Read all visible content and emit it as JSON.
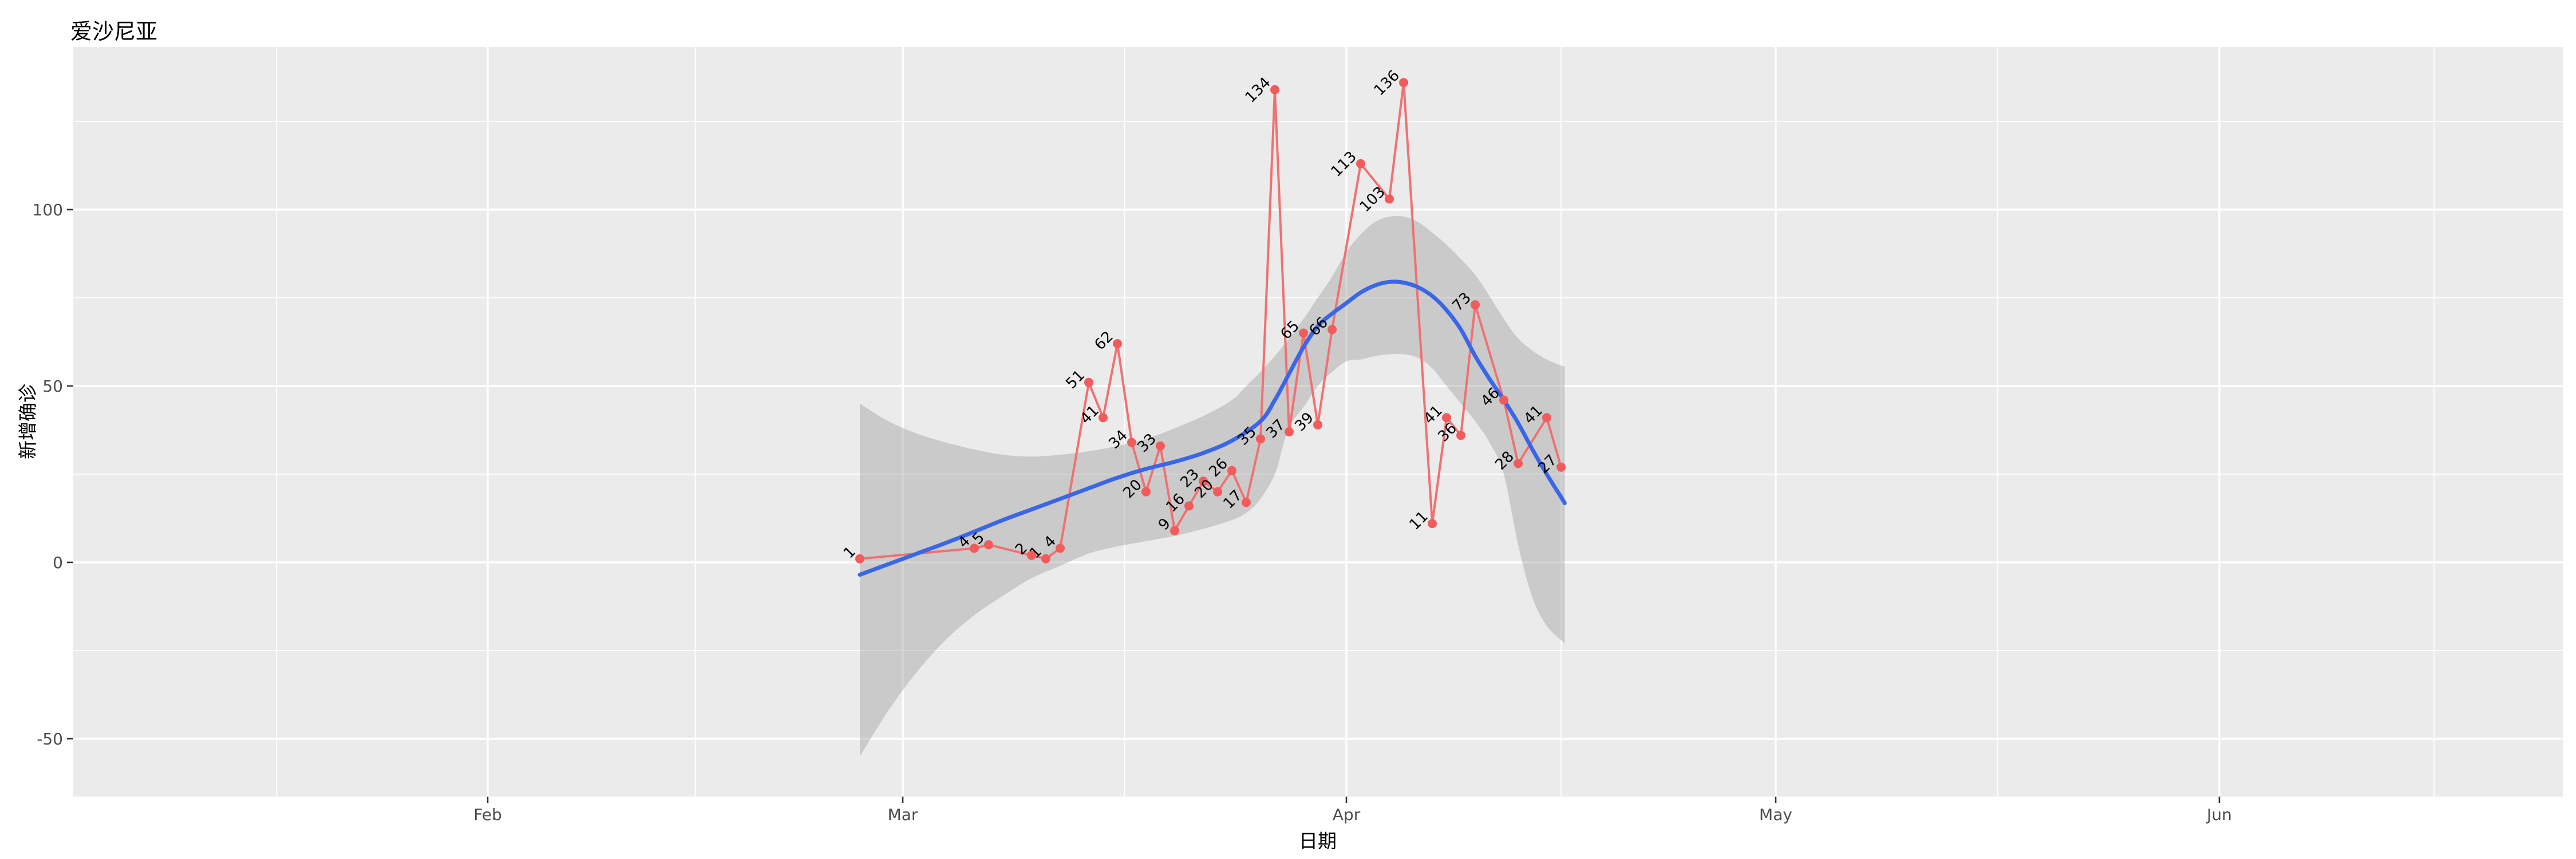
{
  "title": "爱沙尼亚",
  "colors": {
    "panel_background": "#EBEBEB",
    "grid": "#FFFFFF",
    "series_line": "#F07171",
    "series_point": "#F25B5C",
    "smooth_line": "#3A66E8",
    "ci_band_fill": "rgba(153,153,153,0.40)",
    "tick_text": "#4D4D4D",
    "tick_mark": "#333333",
    "label_text": "#000000"
  },
  "chart_data": {
    "type": "line",
    "title": "爱沙尼亚",
    "xlabel": "日期",
    "ylabel": "新增确诊",
    "x_unit": "day_of_year_2020",
    "x_ticks": [
      {
        "label": "Feb",
        "doy": 32
      },
      {
        "label": "Mar",
        "doy": 61
      },
      {
        "label": "Apr",
        "doy": 92
      },
      {
        "label": "May",
        "doy": 122
      },
      {
        "label": "Jun",
        "doy": 153
      }
    ],
    "x_minor_doys": [
      17.25,
      46.5,
      76.5,
      107,
      137.5,
      168
    ],
    "y_ticks": [
      {
        "label": "100",
        "value": 100
      },
      {
        "label": "50",
        "value": 50
      },
      {
        "label": "0",
        "value": 0
      },
      {
        "label": "-50",
        "value": -50
      }
    ],
    "y_minor_values": [
      125,
      75,
      25,
      -25
    ],
    "ylim": [
      -66,
      146
    ],
    "grid": "white major+minor on gray panel",
    "legend": "none",
    "series": [
      {
        "name": "daily-new-confirmed",
        "style": "line+points+labels",
        "points": [
          {
            "doy": 58,
            "value": 1,
            "label": "1"
          },
          {
            "doy": 66,
            "value": 4,
            "label": "4"
          },
          {
            "doy": 67,
            "value": 5,
            "label": "5"
          },
          {
            "doy": 70,
            "value": 2,
            "label": "2"
          },
          {
            "doy": 71,
            "value": 1,
            "label": "1"
          },
          {
            "doy": 72,
            "value": 4,
            "label": "4"
          },
          {
            "doy": 74,
            "value": 51,
            "label": "51"
          },
          {
            "doy": 75,
            "value": 41,
            "label": "41"
          },
          {
            "doy": 76,
            "value": 62,
            "label": "62"
          },
          {
            "doy": 77,
            "value": 34,
            "label": "34"
          },
          {
            "doy": 78,
            "value": 20,
            "label": "20"
          },
          {
            "doy": 79,
            "value": 33,
            "label": "33"
          },
          {
            "doy": 80,
            "value": 9,
            "label": "9"
          },
          {
            "doy": 81,
            "value": 16,
            "label": "16"
          },
          {
            "doy": 82,
            "value": 23,
            "label": "23"
          },
          {
            "doy": 83,
            "value": 20,
            "label": "20"
          },
          {
            "doy": 84,
            "value": 26,
            "label": "26"
          },
          {
            "doy": 85,
            "value": 17,
            "label": "17"
          },
          {
            "doy": 86,
            "value": 35,
            "label": "35"
          },
          {
            "doy": 87,
            "value": 134,
            "label": "134"
          },
          {
            "doy": 88,
            "value": 37,
            "label": "37"
          },
          {
            "doy": 89,
            "value": 65,
            "label": "65"
          },
          {
            "doy": 90,
            "value": 39,
            "label": "39"
          },
          {
            "doy": 91,
            "value": 66,
            "label": "66"
          },
          {
            "doy": 93,
            "value": 113,
            "label": "113"
          },
          {
            "doy": 95,
            "value": 103,
            "label": "103"
          },
          {
            "doy": 96,
            "value": 136,
            "label": "136"
          },
          {
            "doy": 98,
            "value": 11,
            "label": "11"
          },
          {
            "doy": 99,
            "value": 41,
            "label": "41"
          },
          {
            "doy": 100,
            "value": 36,
            "label": "36"
          },
          {
            "doy": 101,
            "value": 73,
            "label": "73"
          },
          {
            "doy": 103,
            "value": 46,
            "label": "46"
          },
          {
            "doy": 104,
            "value": 28,
            "label": "28"
          },
          {
            "doy": 106,
            "value": 41,
            "label": "41"
          },
          {
            "doy": 107,
            "value": 27,
            "label": "27"
          }
        ]
      }
    ],
    "smooth": {
      "name": "loess-fit",
      "points": [
        [
          58,
          -3.5
        ],
        [
          60,
          -0.5
        ],
        [
          62,
          2.5
        ],
        [
          64,
          5.5
        ],
        [
          66,
          8.7
        ],
        [
          68,
          12
        ],
        [
          70,
          15
        ],
        [
          72,
          18
        ],
        [
          74,
          21
        ],
        [
          76,
          24
        ],
        [
          78,
          26.5
        ],
        [
          80,
          28.5
        ],
        [
          82,
          31
        ],
        [
          84,
          34.5
        ],
        [
          86,
          40
        ],
        [
          87,
          46
        ],
        [
          88,
          53.5
        ],
        [
          89,
          61
        ],
        [
          90,
          67
        ],
        [
          91,
          70.5
        ],
        [
          92,
          73.5
        ],
        [
          93,
          76.5
        ],
        [
          94,
          78.5
        ],
        [
          95,
          79.5
        ],
        [
          96,
          79.3
        ],
        [
          97,
          78
        ],
        [
          98,
          75.5
        ],
        [
          99,
          71.5
        ],
        [
          100,
          66
        ],
        [
          101,
          58.5
        ],
        [
          102,
          52
        ],
        [
          103,
          46
        ],
        [
          104,
          39.5
        ],
        [
          105,
          32
        ],
        [
          106,
          25
        ],
        [
          107,
          18.5
        ],
        [
          107.25,
          16.8
        ]
      ]
    },
    "ci_band": {
      "name": "loess-confidence-band",
      "points": [
        [
          58,
          -55,
          45
        ],
        [
          60,
          -42,
          40
        ],
        [
          62,
          -31,
          36.5
        ],
        [
          64,
          -22,
          34
        ],
        [
          66,
          -15,
          32
        ],
        [
          68,
          -9.5,
          30.5
        ],
        [
          70,
          -4.5,
          30
        ],
        [
          72,
          -1,
          30.5
        ],
        [
          74,
          2.5,
          31.5
        ],
        [
          76,
          4.5,
          33
        ],
        [
          78,
          6,
          35
        ],
        [
          80,
          7.5,
          38
        ],
        [
          82,
          9.5,
          41.5
        ],
        [
          84,
          12,
          46
        ],
        [
          85,
          14,
          50
        ],
        [
          86,
          18,
          54
        ],
        [
          87,
          25,
          58.5
        ],
        [
          87.5,
          32,
          61
        ],
        [
          88,
          38.5,
          63.5
        ],
        [
          89,
          44,
          69
        ],
        [
          90,
          50,
          75
        ],
        [
          91,
          54,
          81
        ],
        [
          92,
          57,
          88
        ],
        [
          93,
          57.5,
          93
        ],
        [
          94,
          58.5,
          96.5
        ],
        [
          95,
          59,
          98
        ],
        [
          96,
          59,
          98
        ],
        [
          97,
          58,
          96.5
        ],
        [
          98,
          55,
          93.5
        ],
        [
          99,
          50,
          90
        ],
        [
          100,
          45,
          86
        ],
        [
          101,
          40,
          81.5
        ],
        [
          102,
          34,
          75.5
        ],
        [
          103,
          25,
          69
        ],
        [
          104,
          5,
          63.5
        ],
        [
          105,
          -10,
          60
        ],
        [
          106,
          -18,
          57.5
        ],
        [
          107,
          -22,
          55.8
        ],
        [
          107.25,
          -23,
          55.5
        ]
      ]
    }
  }
}
